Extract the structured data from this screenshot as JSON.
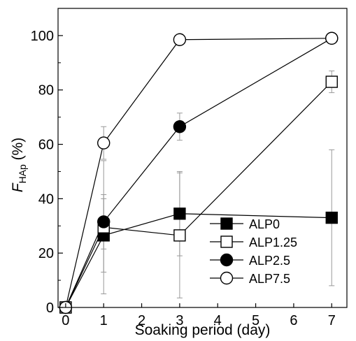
{
  "chart_data": {
    "type": "scatter",
    "xlabel": "Soaking period (day)",
    "ylabel_main": "F",
    "ylabel_sub": "HAp",
    "ylabel_unit": " (%)",
    "xlim": [
      -0.2,
      7.4
    ],
    "ylim": [
      0,
      110
    ],
    "xticks": [
      0,
      1,
      2,
      3,
      4,
      5,
      6,
      7
    ],
    "yticks": [
      0,
      20,
      40,
      60,
      80,
      100
    ],
    "xtick_labels": [
      "0",
      "1",
      "2",
      "3",
      "4",
      "5",
      "6",
      "7"
    ],
    "ytick_labels": [
      "0",
      "20",
      "40",
      "60",
      "80",
      "100"
    ],
    "legend_position": "bottom-right",
    "grid": false,
    "series": [
      {
        "name": "ALP0",
        "marker": "square-filled",
        "x": [
          0,
          1,
          3,
          7
        ],
        "y": [
          0,
          26.5,
          34.5,
          33
        ],
        "err": [
          0,
          13.5,
          15.5,
          25
        ]
      },
      {
        "name": "ALP1.25",
        "marker": "square-open",
        "x": [
          0,
          1,
          3,
          7
        ],
        "y": [
          0,
          29.5,
          26.5,
          83
        ],
        "err": [
          0,
          24.5,
          23,
          4
        ]
      },
      {
        "name": "ALP2.5",
        "marker": "circle-filled",
        "x": [
          0,
          1,
          3,
          7
        ],
        "y": [
          0,
          31.5,
          66.5,
          99
        ],
        "err": [
          0,
          10,
          5,
          0
        ]
      },
      {
        "name": "ALP7.5",
        "marker": "circle-open",
        "x": [
          0,
          1,
          3,
          7
        ],
        "y": [
          0,
          60.5,
          98.5,
          99
        ],
        "err": [
          0,
          6,
          0,
          0
        ]
      }
    ]
  }
}
